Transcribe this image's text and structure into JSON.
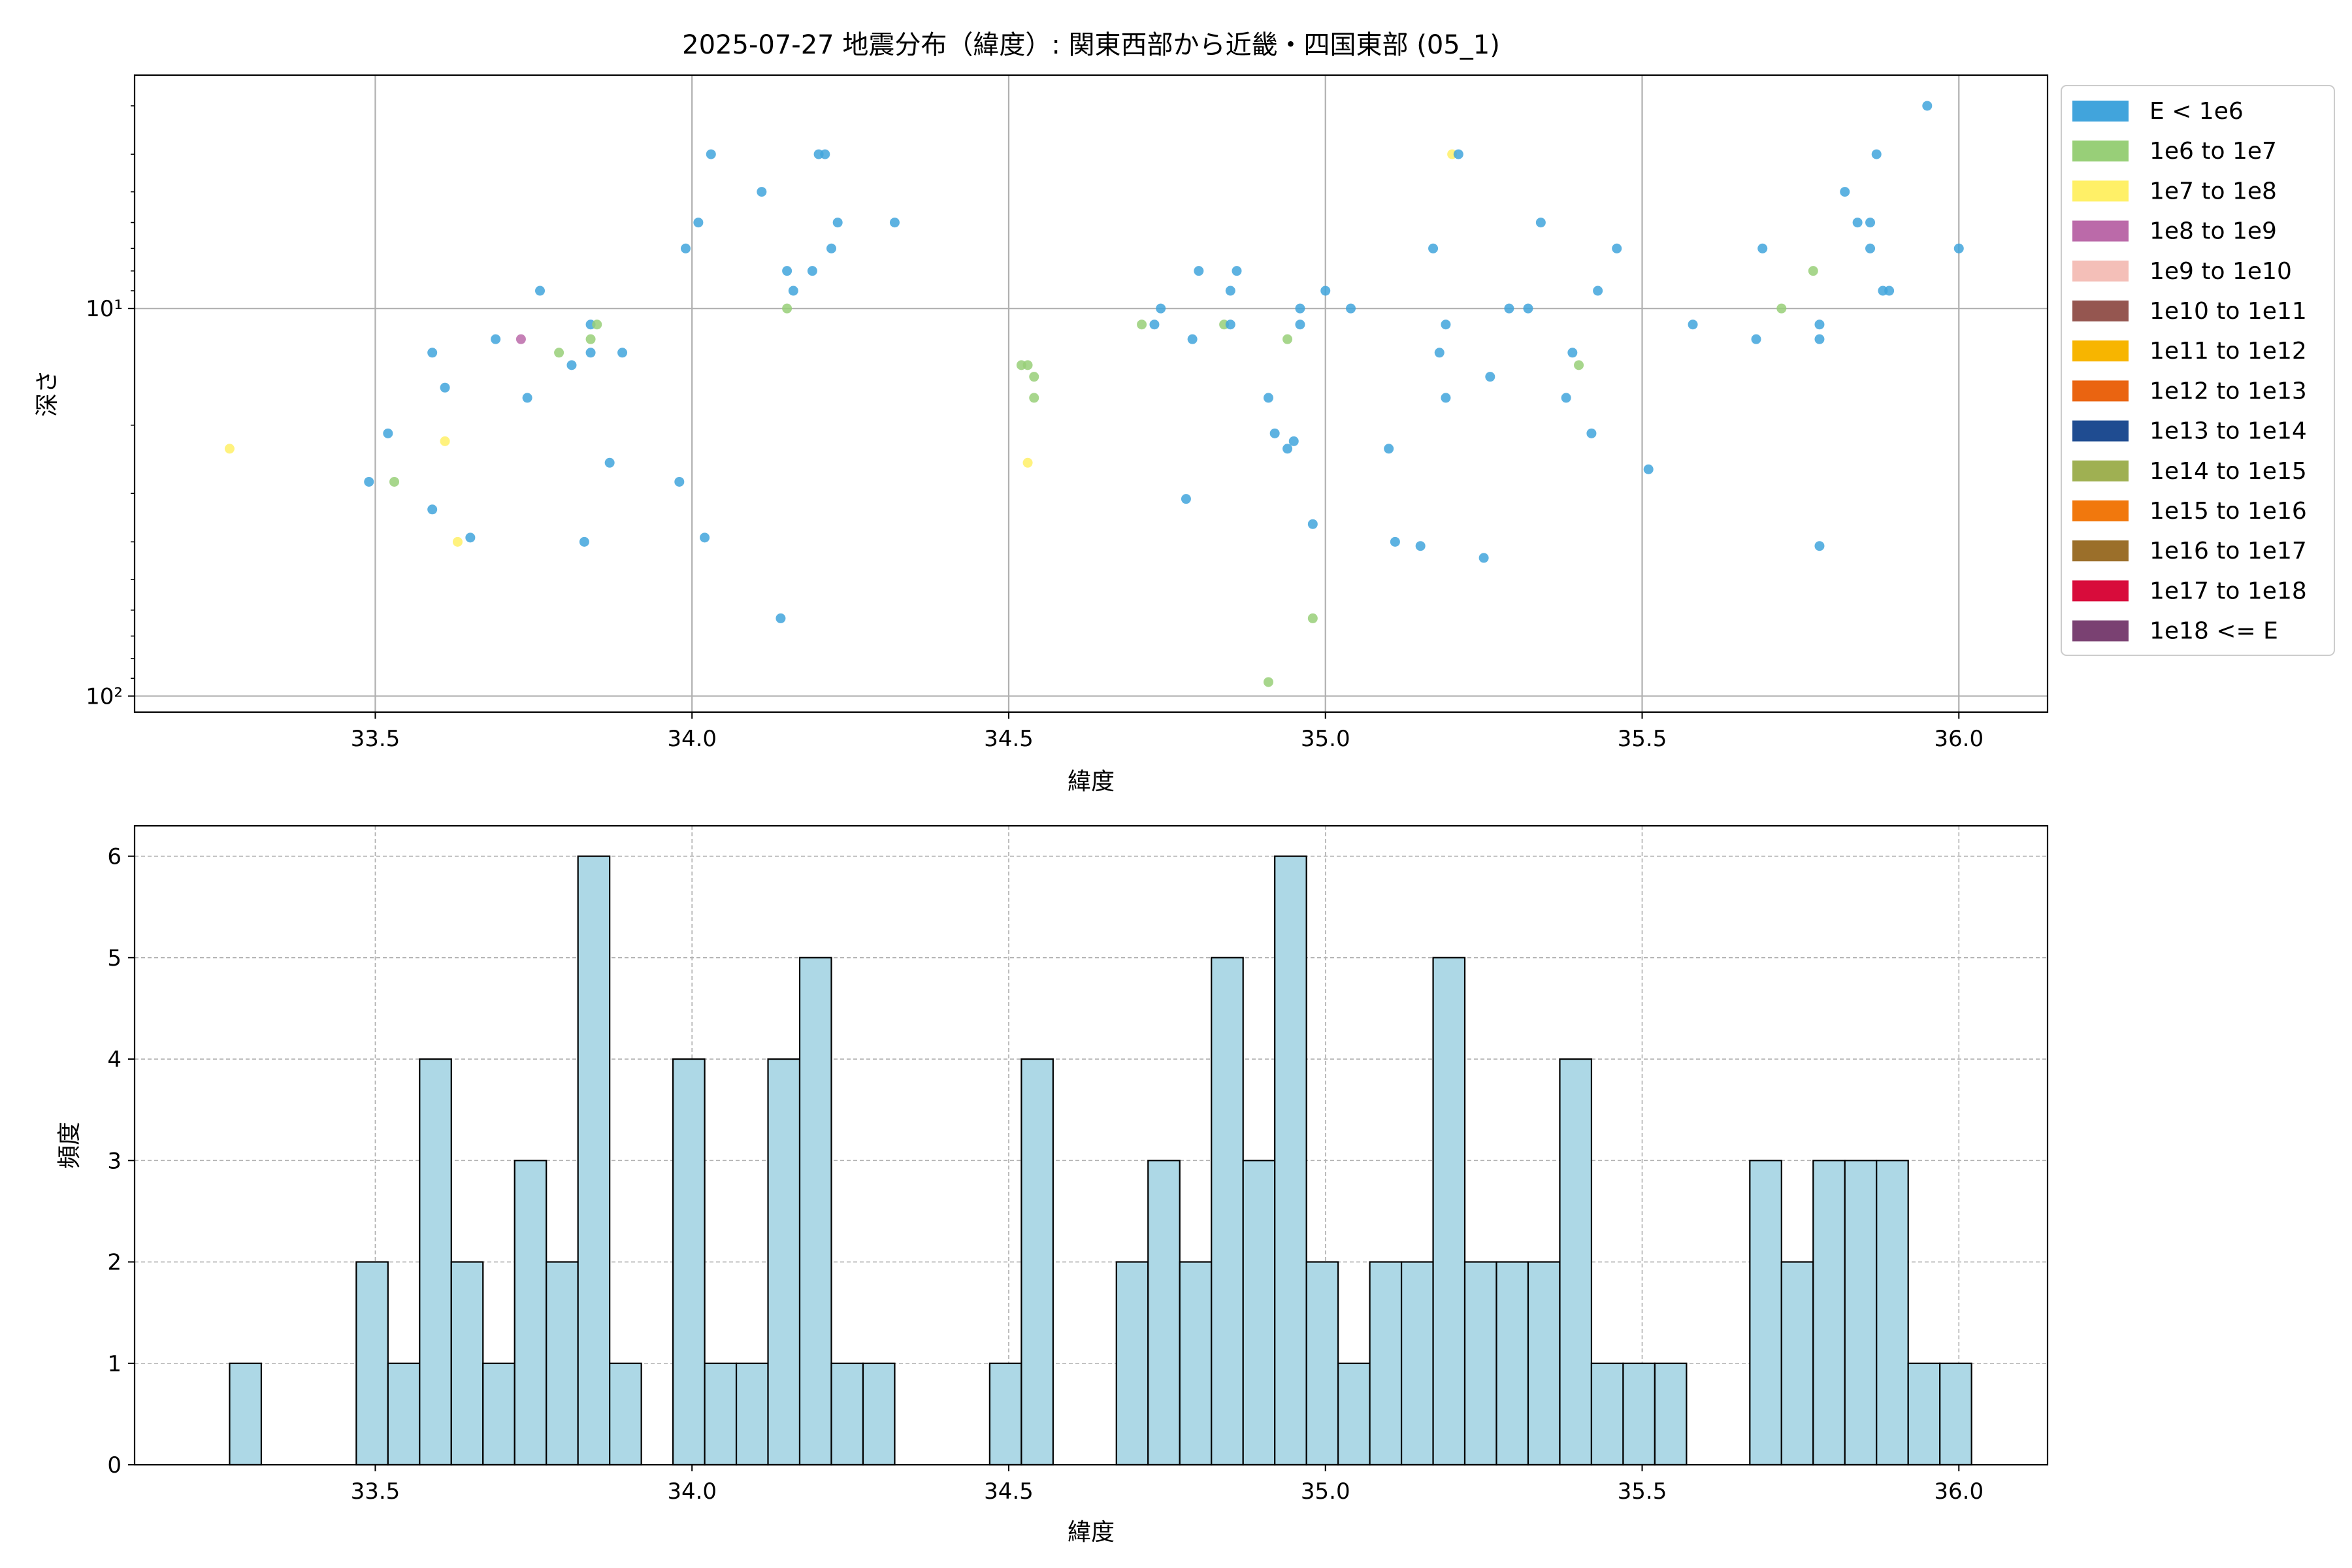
{
  "figure_title": "2025-07-27 地震分布（緯度）: 関東西部から近畿・四国東部 (05_1)",
  "colors": {
    "scatter_default": "#41a4dc",
    "hist_fill": "#add8e6",
    "hist_edge": "#000000",
    "grid": "#b0b0b0"
  },
  "chart_data": [
    {
      "type": "scatter",
      "xlabel": "緯度",
      "ylabel": "深さ",
      "xlim": [
        33.12,
        36.14
      ],
      "ylim_log": [
        110,
        2.5
      ],
      "y_scale": "log",
      "y_inverted": true,
      "x_ticks": [
        33.5,
        34.0,
        34.5,
        35.0,
        35.5,
        36.0
      ],
      "x_tick_labels": [
        "33.5",
        "34.0",
        "34.5",
        "35.0",
        "35.5",
        "36.0"
      ],
      "y_major_ticks": [
        10,
        100
      ],
      "y_major_labels": [
        "10¹",
        "10²"
      ],
      "y_minor_ticks": [
        3,
        4,
        5,
        6,
        7,
        8,
        9,
        20,
        30,
        40,
        50,
        60,
        70,
        80,
        90
      ],
      "grid": true,
      "legend_placement": "outside-right",
      "legend": [
        {
          "label": "E < 1e6",
          "color": "#41a4dc"
        },
        {
          "label": "1e6 to 1e7",
          "color": "#98cf78"
        },
        {
          "label": "1e7 to 1e8",
          "color": "#fff067"
        },
        {
          "label": "1e8 to 1e9",
          "color": "#bb6aa9"
        },
        {
          "label": "1e9 to 1e10",
          "color": "#f4bfb8"
        },
        {
          "label": "1e10 to 1e11",
          "color": "#955650"
        },
        {
          "label": "1e11 to 1e12",
          "color": "#f7b500"
        },
        {
          "label": "1e12 to 1e13",
          "color": "#ea6411"
        },
        {
          "label": "1e13 to 1e14",
          "color": "#1f4c91"
        },
        {
          "label": "1e14 to 1e15",
          "color": "#9fb052"
        },
        {
          "label": "1e15 to 1e16",
          "color": "#f1780d"
        },
        {
          "label": "1e16 to 1e17",
          "color": "#9b6f2a"
        },
        {
          "label": "1e17 to 1e18",
          "color": "#d80c3b"
        },
        {
          "label": "1e18 <= E",
          "color": "#7a4172"
        }
      ],
      "points": [
        {
          "x": 33.27,
          "y": 23,
          "c": 2
        },
        {
          "x": 33.49,
          "y": 28,
          "c": 0
        },
        {
          "x": 33.52,
          "y": 21,
          "c": 0
        },
        {
          "x": 33.53,
          "y": 28,
          "c": 1
        },
        {
          "x": 33.59,
          "y": 13,
          "c": 0
        },
        {
          "x": 33.59,
          "y": 33,
          "c": 0
        },
        {
          "x": 33.61,
          "y": 16,
          "c": 0
        },
        {
          "x": 33.61,
          "y": 22,
          "c": 2
        },
        {
          "x": 33.63,
          "y": 40,
          "c": 2
        },
        {
          "x": 33.65,
          "y": 39,
          "c": 0
        },
        {
          "x": 33.69,
          "y": 12,
          "c": 0
        },
        {
          "x": 33.73,
          "y": 12,
          "c": 3
        },
        {
          "x": 33.74,
          "y": 17,
          "c": 0
        },
        {
          "x": 33.76,
          "y": 9,
          "c": 0
        },
        {
          "x": 33.79,
          "y": 13,
          "c": 1
        },
        {
          "x": 33.81,
          "y": 14,
          "c": 0
        },
        {
          "x": 33.83,
          "y": 40,
          "c": 0
        },
        {
          "x": 33.84,
          "y": 11,
          "c": 0
        },
        {
          "x": 33.84,
          "y": 12,
          "c": 1
        },
        {
          "x": 33.84,
          "y": 13,
          "c": 0
        },
        {
          "x": 33.85,
          "y": 11,
          "c": 1
        },
        {
          "x": 33.87,
          "y": 25,
          "c": 0
        },
        {
          "x": 33.89,
          "y": 13,
          "c": 0
        },
        {
          "x": 33.98,
          "y": 28,
          "c": 0
        },
        {
          "x": 33.99,
          "y": 7,
          "c": 0
        },
        {
          "x": 34.01,
          "y": 6,
          "c": 0
        },
        {
          "x": 34.02,
          "y": 39,
          "c": 0
        },
        {
          "x": 34.03,
          "y": 4,
          "c": 0
        },
        {
          "x": 34.11,
          "y": 5,
          "c": 0
        },
        {
          "x": 34.14,
          "y": 63,
          "c": 0
        },
        {
          "x": 34.15,
          "y": 8,
          "c": 0
        },
        {
          "x": 34.15,
          "y": 10,
          "c": 1
        },
        {
          "x": 34.16,
          "y": 9,
          "c": 0
        },
        {
          "x": 34.19,
          "y": 8,
          "c": 0
        },
        {
          "x": 34.2,
          "y": 4,
          "c": 0
        },
        {
          "x": 34.21,
          "y": 4,
          "c": 0
        },
        {
          "x": 34.22,
          "y": 7,
          "c": 0
        },
        {
          "x": 34.23,
          "y": 6,
          "c": 0
        },
        {
          "x": 34.32,
          "y": 6,
          "c": 0
        },
        {
          "x": 34.52,
          "y": 14,
          "c": 1
        },
        {
          "x": 34.53,
          "y": 14,
          "c": 1
        },
        {
          "x": 34.53,
          "y": 25,
          "c": 2
        },
        {
          "x": 34.54,
          "y": 15,
          "c": 1
        },
        {
          "x": 34.54,
          "y": 17,
          "c": 1
        },
        {
          "x": 34.71,
          "y": 11,
          "c": 1
        },
        {
          "x": 34.73,
          "y": 11,
          "c": 0
        },
        {
          "x": 34.74,
          "y": 10,
          "c": 0
        },
        {
          "x": 34.78,
          "y": 31,
          "c": 0
        },
        {
          "x": 34.79,
          "y": 12,
          "c": 0
        },
        {
          "x": 34.8,
          "y": 8,
          "c": 0
        },
        {
          "x": 34.84,
          "y": 11,
          "c": 1
        },
        {
          "x": 34.85,
          "y": 9,
          "c": 0
        },
        {
          "x": 34.85,
          "y": 11,
          "c": 0
        },
        {
          "x": 34.86,
          "y": 8,
          "c": 0
        },
        {
          "x": 34.91,
          "y": 17,
          "c": 0
        },
        {
          "x": 34.91,
          "y": 92,
          "c": 1
        },
        {
          "x": 34.92,
          "y": 21,
          "c": 0
        },
        {
          "x": 34.94,
          "y": 12,
          "c": 1
        },
        {
          "x": 34.94,
          "y": 23,
          "c": 0
        },
        {
          "x": 34.95,
          "y": 22,
          "c": 0
        },
        {
          "x": 34.96,
          "y": 10,
          "c": 0
        },
        {
          "x": 34.96,
          "y": 11,
          "c": 0
        },
        {
          "x": 34.98,
          "y": 36,
          "c": 0
        },
        {
          "x": 34.98,
          "y": 63,
          "c": 1
        },
        {
          "x": 35.0,
          "y": 9,
          "c": 0
        },
        {
          "x": 35.04,
          "y": 10,
          "c": 0
        },
        {
          "x": 35.1,
          "y": 23,
          "c": 0
        },
        {
          "x": 35.11,
          "y": 40,
          "c": 0
        },
        {
          "x": 35.15,
          "y": 41,
          "c": 0
        },
        {
          "x": 35.17,
          "y": 7,
          "c": 0
        },
        {
          "x": 35.18,
          "y": 13,
          "c": 0
        },
        {
          "x": 35.19,
          "y": 17,
          "c": 0
        },
        {
          "x": 35.19,
          "y": 11,
          "c": 0
        },
        {
          "x": 35.2,
          "y": 4,
          "c": 2
        },
        {
          "x": 35.21,
          "y": 4,
          "c": 0
        },
        {
          "x": 35.25,
          "y": 44,
          "c": 0
        },
        {
          "x": 35.26,
          "y": 15,
          "c": 0
        },
        {
          "x": 35.29,
          "y": 10,
          "c": 0
        },
        {
          "x": 35.32,
          "y": 10,
          "c": 0
        },
        {
          "x": 35.34,
          "y": 6,
          "c": 0
        },
        {
          "x": 35.38,
          "y": 17,
          "c": 0
        },
        {
          "x": 35.39,
          "y": 13,
          "c": 0
        },
        {
          "x": 35.4,
          "y": 14,
          "c": 1
        },
        {
          "x": 35.42,
          "y": 21,
          "c": 0
        },
        {
          "x": 35.43,
          "y": 9,
          "c": 0
        },
        {
          "x": 35.46,
          "y": 7,
          "c": 0
        },
        {
          "x": 35.51,
          "y": 26,
          "c": 0
        },
        {
          "x": 35.58,
          "y": 11,
          "c": 0
        },
        {
          "x": 35.68,
          "y": 12,
          "c": 0
        },
        {
          "x": 35.69,
          "y": 7,
          "c": 0
        },
        {
          "x": 35.72,
          "y": 10,
          "c": 1
        },
        {
          "x": 35.77,
          "y": 8,
          "c": 1
        },
        {
          "x": 35.78,
          "y": 11,
          "c": 0
        },
        {
          "x": 35.78,
          "y": 12,
          "c": 0
        },
        {
          "x": 35.78,
          "y": 41,
          "c": 0
        },
        {
          "x": 35.82,
          "y": 5,
          "c": 0
        },
        {
          "x": 35.84,
          "y": 6,
          "c": 0
        },
        {
          "x": 35.86,
          "y": 6,
          "c": 0
        },
        {
          "x": 35.86,
          "y": 7,
          "c": 0
        },
        {
          "x": 35.87,
          "y": 4,
          "c": 0
        },
        {
          "x": 35.88,
          "y": 9,
          "c": 0
        },
        {
          "x": 35.89,
          "y": 9,
          "c": 0
        },
        {
          "x": 35.95,
          "y": 3,
          "c": 0
        },
        {
          "x": 36.0,
          "y": 7,
          "c": 0
        }
      ]
    },
    {
      "type": "bar",
      "xlabel": "緯度",
      "ylabel": "頻度",
      "xlim": [
        33.12,
        36.14
      ],
      "ylim": [
        0,
        6.3
      ],
      "x_ticks": [
        33.5,
        34.0,
        34.5,
        35.0,
        35.5,
        36.0
      ],
      "x_tick_labels": [
        "33.5",
        "34.0",
        "34.5",
        "35.0",
        "35.5",
        "36.0"
      ],
      "y_ticks": [
        0,
        1,
        2,
        3,
        4,
        5,
        6
      ],
      "grid": "dashed",
      "bin_start": 33.27,
      "bin_width": 0.05,
      "counts": [
        1,
        0,
        0,
        0,
        2,
        1,
        4,
        2,
        1,
        3,
        2,
        6,
        1,
        0,
        4,
        1,
        1,
        4,
        5,
        1,
        1,
        0,
        0,
        0,
        1,
        4,
        0,
        0,
        2,
        3,
        2,
        5,
        3,
        6,
        2,
        1,
        2,
        2,
        5,
        2,
        2,
        2,
        4,
        1,
        1,
        1,
        0,
        0,
        3,
        2,
        3,
        3,
        3,
        1,
        1
      ]
    }
  ]
}
